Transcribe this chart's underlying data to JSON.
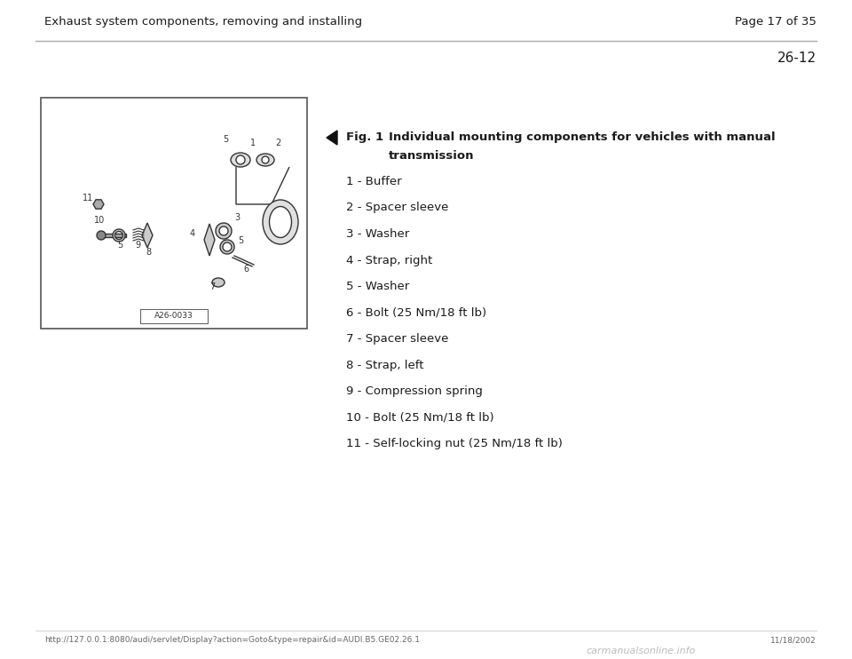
{
  "page_bg": "#ffffff",
  "header_text": "Exhaust system components, removing and installing",
  "page_number": "Page 17 of 35",
  "section_number": "26-12",
  "fig_label": "Fig. 1",
  "fig_desc_line1": "Individual mounting components for vehicles with manual",
  "fig_desc_line2": "transmission",
  "items": [
    "1 - Buffer",
    "2 - Spacer sleeve",
    "3 - Washer",
    "4 - Strap, right",
    "5 - Washer",
    "6 - Bolt (25 Nm/18 ft lb)",
    "7 - Spacer sleeve",
    "8 - Strap, left",
    "9 - Compression spring",
    "10 - Bolt (25 Nm/18 ft lb)",
    "11 - Self-locking nut (25 Nm/18 ft lb)"
  ],
  "footer_url": "http://127.0.0.1:8080/audi/servlet/Display?action=Goto&type=repair&id=AUDI.B5.GE02.26.1",
  "footer_date": "11/18/2002",
  "img_label": "A26-0033",
  "text_color": "#1a1a1a",
  "gray_color": "#777777",
  "line_color": "#aaaaaa",
  "border_color": "#666666",
  "watermark_color": "#bbbbbb"
}
